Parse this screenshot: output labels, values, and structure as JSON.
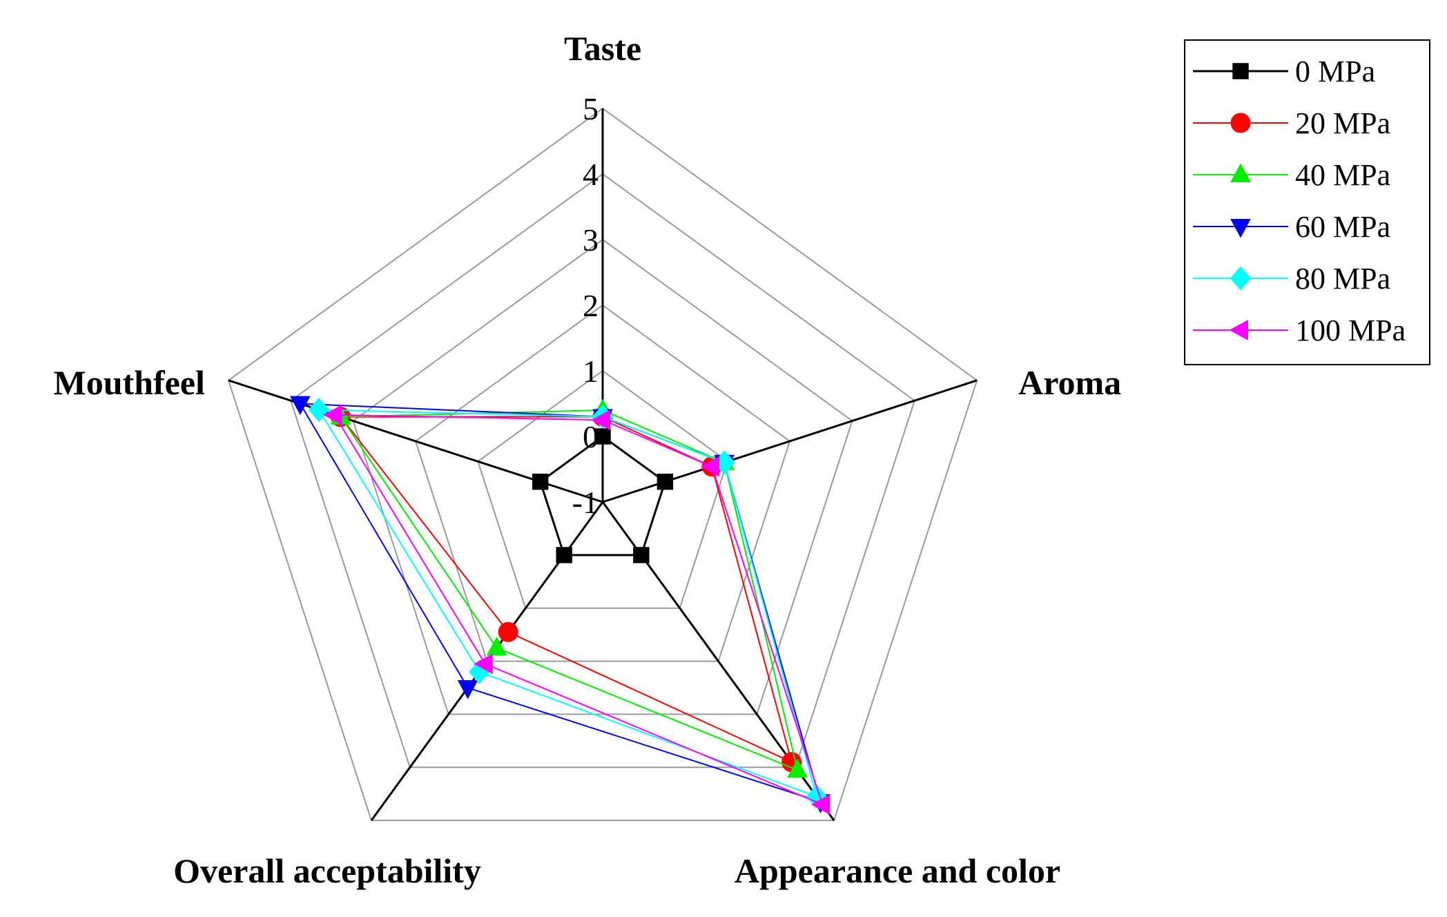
{
  "chart_data": {
    "type": "radar",
    "axes": [
      "Taste",
      "Aroma",
      "Appearance and color",
      "Overall acceptability",
      "Mouthfeel"
    ],
    "rlim": [
      -1,
      5
    ],
    "ticks": [
      "-1",
      "0",
      "1",
      "2",
      "3",
      "4",
      "5"
    ],
    "tick_values": [
      -1,
      0,
      1,
      2,
      3,
      4,
      5
    ],
    "grid": true,
    "legend_position": "top-right",
    "series": [
      {
        "name": "0 MPa",
        "color": "#000000",
        "marker": "square",
        "values": [
          0.0,
          0.0,
          0.0,
          0.0,
          0.0
        ]
      },
      {
        "name": "20 MPa",
        "color": "#ff0000",
        "marker": "circle",
        "values": [
          0.3,
          0.75,
          3.9,
          1.45,
          3.2
        ]
      },
      {
        "name": "40 MPa",
        "color": "#00ee00",
        "marker": "triangle-up",
        "values": [
          0.4,
          0.95,
          4.05,
          1.75,
          3.2
        ]
      },
      {
        "name": "60 MPa",
        "color": "#0000ff",
        "marker": "triangle-down",
        "values": [
          0.3,
          0.95,
          4.65,
          2.5,
          3.85
        ]
      },
      {
        "name": "80 MPa",
        "color": "#00ffff",
        "marker": "diamond",
        "values": [
          0.3,
          0.95,
          4.55,
          2.2,
          3.55
        ]
      },
      {
        "name": "100 MPa",
        "color": "#ff00ff",
        "marker": "triangle-left",
        "values": [
          0.25,
          0.75,
          4.7,
          2.05,
          3.3
        ]
      }
    ]
  }
}
